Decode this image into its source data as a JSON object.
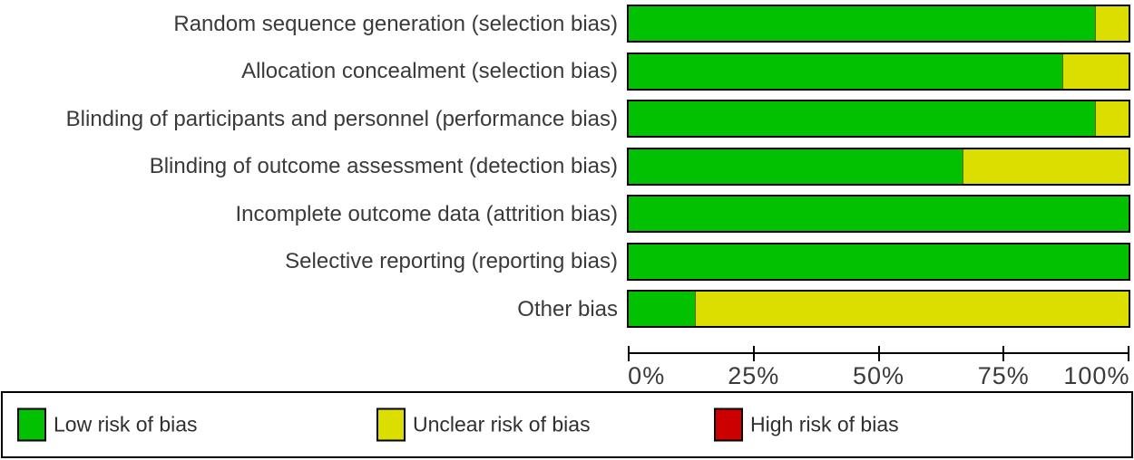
{
  "chart_data": {
    "type": "bar",
    "orientation": "horizontal",
    "stacked": true,
    "unit": "percent",
    "title": "",
    "categories": [
      "Random sequence generation (selection bias)",
      "Allocation concealment (selection bias)",
      "Blinding of participants and personnel (performance bias)",
      "Blinding of outcome assessment (detection bias)",
      "Incomplete outcome data (attrition bias)",
      "Selective reporting (reporting bias)",
      "Other bias"
    ],
    "series": [
      {
        "name": "Low risk of bias",
        "color": "#02c100",
        "values": [
          93.3,
          86.7,
          93.3,
          66.7,
          100,
          100,
          13.3
        ]
      },
      {
        "name": "Unclear risk of bias",
        "color": "#dcde00",
        "values": [
          6.7,
          13.3,
          6.7,
          33.3,
          0,
          0,
          86.7
        ]
      },
      {
        "name": "High risk of bias",
        "color": "#cc0000",
        "values": [
          0,
          0,
          0,
          0,
          0,
          0,
          0
        ]
      }
    ],
    "xlim": [
      0,
      100
    ],
    "x_ticks": [
      "0%",
      "25%",
      "50%",
      "75%",
      "100%"
    ],
    "grid": false,
    "legend_position": "bottom"
  },
  "legend": {
    "items": [
      {
        "label": "Low risk of bias",
        "color": "#02c100"
      },
      {
        "label": "Unclear risk of bias",
        "color": "#dcde00"
      },
      {
        "label": "High risk of bias",
        "color": "#cc0000"
      }
    ]
  }
}
